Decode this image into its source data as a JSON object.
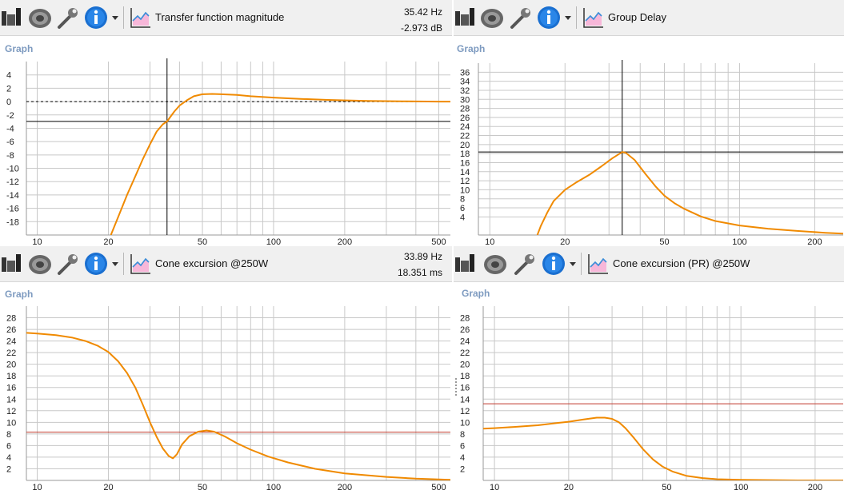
{
  "toolbar_icons": [
    "speaker-drawer-icon",
    "speaker-icon",
    "wrench-icon",
    "info-icon",
    "dropdown-arrow-icon",
    "graph-icon"
  ],
  "colors": {
    "curve": "#f08a00",
    "limit": "#c0392b",
    "grid": "#c8c8c8",
    "cursor": "#000000"
  },
  "panels": [
    {
      "title": "Transfer function magnitude",
      "readout_top": "35.42 Hz",
      "readout_bottom": "-2.973 dB",
      "graph_label": "Graph"
    },
    {
      "title": "Group Delay",
      "graph_label": "Graph"
    },
    {
      "title": "Cone excursion  @250W",
      "readout_top": "33.89 Hz",
      "readout_bottom": "18.351 ms",
      "graph_label": "Graph"
    },
    {
      "title": "Cone excursion (PR)  @250W",
      "graph_label": "Graph"
    }
  ],
  "chart_data": [
    {
      "type": "line",
      "title": "Transfer function magnitude",
      "x_scale": "log",
      "xlim": [
        9,
        560
      ],
      "ylim": [
        -20,
        6
      ],
      "xticks": [
        "10",
        "20",
        "50",
        "100",
        "200",
        "500"
      ],
      "yticks": [
        "4",
        "2",
        "0",
        "-2",
        "-4",
        "-6",
        "-8",
        "-10",
        "-12",
        "-14",
        "-16",
        "-18"
      ],
      "grid": true,
      "cursor": {
        "x": 35.42,
        "y": -2.973
      },
      "reference_y": 0,
      "series": [
        {
          "x": [
            20.5,
            22,
            24,
            26,
            28,
            30,
            32,
            34,
            35.42,
            38,
            40,
            43,
            46,
            50,
            55,
            60,
            70,
            80,
            100,
            130,
            170,
            250,
            350,
            500,
            560
          ],
          "y": [
            -20,
            -17.3,
            -14,
            -11.2,
            -8.6,
            -6.4,
            -4.5,
            -3.4,
            -2.973,
            -1.5,
            -0.6,
            0.2,
            0.8,
            1.1,
            1.15,
            1.1,
            1.0,
            0.8,
            0.6,
            0.4,
            0.25,
            0.1,
            0.05,
            0.0,
            0.0
          ]
        }
      ]
    },
    {
      "type": "line",
      "title": "Group Delay",
      "x_scale": "log",
      "xlim": [
        9,
        260
      ],
      "ylim": [
        0,
        38
      ],
      "xticks": [
        "10",
        "20",
        "50",
        "100",
        "200"
      ],
      "yticks": [
        "4",
        "6",
        "8",
        "10",
        "12",
        "14",
        "16",
        "18",
        "20",
        "22",
        "24",
        "26",
        "28",
        "30",
        "32",
        "34",
        "36"
      ],
      "grid": true,
      "cursor": {
        "x": 33.89,
        "y": 18.351
      },
      "series": [
        {
          "x": [
            15.5,
            16,
            17,
            18,
            20,
            22,
            25,
            28,
            31,
            33.89,
            35,
            38,
            42,
            46,
            50,
            55,
            60,
            70,
            80,
            100,
            130,
            170,
            220,
            260
          ],
          "y": [
            0,
            2,
            5,
            7.5,
            10,
            11.5,
            13.3,
            15.2,
            17,
            18.351,
            18.2,
            16.6,
            13.5,
            10.8,
            8.7,
            7,
            5.8,
            4.1,
            3.1,
            2.1,
            1.4,
            0.9,
            0.5,
            0.3
          ]
        }
      ]
    },
    {
      "type": "line",
      "title": "Cone excursion  @250W",
      "x_scale": "log",
      "xlim": [
        9,
        560
      ],
      "ylim": [
        0,
        30
      ],
      "xticks": [
        "10",
        "20",
        "50",
        "100",
        "200",
        "500"
      ],
      "yticks": [
        "2",
        "4",
        "6",
        "8",
        "10",
        "12",
        "14",
        "16",
        "18",
        "20",
        "22",
        "24",
        "26",
        "28"
      ],
      "grid": true,
      "limit_y": 8.3,
      "series": [
        {
          "x": [
            9,
            10,
            12,
            14,
            16,
            18,
            20,
            22,
            24,
            26,
            28,
            30,
            32,
            34,
            36,
            37.5,
            39,
            41,
            44,
            48,
            52,
            56,
            62,
            70,
            80,
            95,
            115,
            150,
            200,
            300,
            400,
            560
          ],
          "y": [
            25.4,
            25.3,
            25.0,
            24.6,
            24.0,
            23.2,
            22.1,
            20.5,
            18.5,
            16.0,
            13.0,
            10.0,
            7.5,
            5.5,
            4.2,
            3.8,
            4.5,
            6.2,
            7.6,
            8.4,
            8.6,
            8.4,
            7.6,
            6.4,
            5.3,
            4.1,
            3.1,
            2.0,
            1.2,
            0.6,
            0.3,
            0.1
          ]
        }
      ]
    },
    {
      "type": "line",
      "title": "Cone excursion (PR)  @250W",
      "x_scale": "log",
      "xlim": [
        9,
        260
      ],
      "ylim": [
        0,
        30
      ],
      "xticks": [
        "10",
        "20",
        "50",
        "100",
        "200"
      ],
      "yticks": [
        "2",
        "4",
        "6",
        "8",
        "10",
        "12",
        "14",
        "16",
        "18",
        "20",
        "22",
        "24",
        "26",
        "28"
      ],
      "grid": true,
      "limit_y": 13.2,
      "series": [
        {
          "x": [
            9,
            10,
            12,
            15,
            18,
            20,
            23,
            26,
            28,
            30,
            32,
            34,
            37,
            40,
            44,
            48,
            53,
            60,
            70,
            80,
            100,
            130,
            170,
            260
          ],
          "y": [
            8.9,
            9.0,
            9.2,
            9.5,
            9.9,
            10.1,
            10.5,
            10.8,
            10.8,
            10.6,
            10.0,
            9.0,
            7.2,
            5.4,
            3.6,
            2.4,
            1.5,
            0.8,
            0.4,
            0.2,
            0.1,
            0.05,
            0.0,
            0.0
          ]
        }
      ]
    }
  ]
}
